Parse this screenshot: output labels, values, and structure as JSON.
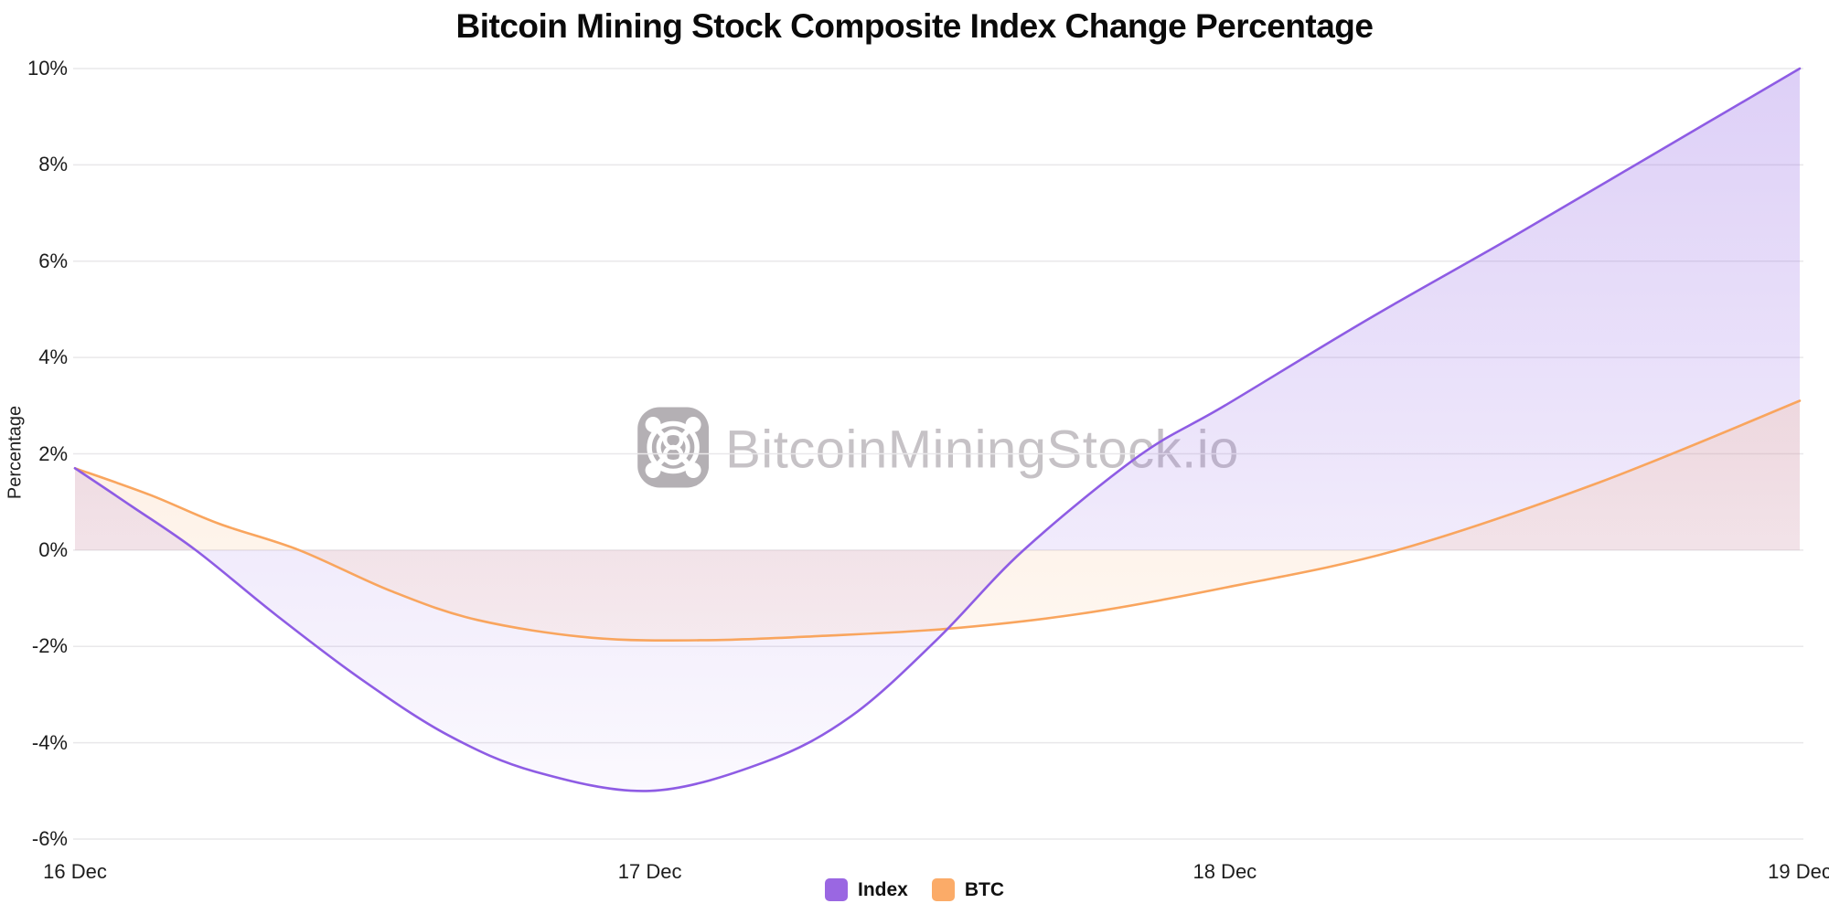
{
  "title": "Bitcoin Mining Stock Composite Index Change Percentage",
  "watermark": {
    "text": "BitcoinMiningStock.io",
    "logo": "asic-miner-fan-logo",
    "text_color": "#c6c2c6",
    "logo_color": "#b4b0b4"
  },
  "axes": {
    "y_label": "Percentage",
    "y_ticks": [
      "10%",
      "8%",
      "6%",
      "4%",
      "2%",
      "0%",
      "-2%",
      "-4%",
      "-6%"
    ],
    "y_tick_values": [
      10,
      8,
      6,
      4,
      2,
      0,
      -2,
      -4,
      -6
    ],
    "x_ticks": [
      "16 Dec",
      "17 Dec",
      "18 Dec",
      "19 Dec"
    ],
    "grid_color": "#e9e8ea"
  },
  "legend": {
    "position": "bottom",
    "items": [
      {
        "label": "Index",
        "color": "#9a67e2"
      },
      {
        "label": "BTC",
        "color": "#fbab68"
      }
    ]
  },
  "chart_data": {
    "type": "area",
    "title": "Bitcoin Mining Stock Composite Index Change Percentage",
    "xlabel": "",
    "ylabel": "Percentage",
    "ylim": [
      -6,
      10
    ],
    "y_tick_step": 2,
    "grid": "horizontal",
    "baseline": 0,
    "legend_position": "bottom",
    "x_categories": [
      "16 Dec",
      "17 Dec",
      "18 Dec",
      "19 Dec"
    ],
    "x_category_days": [
      0,
      1,
      2,
      3
    ],
    "x_unit": "days_after_16_Dec",
    "y_unit": "percent",
    "series": [
      {
        "name": "Index",
        "line_color": "#8e5ce4",
        "fill_from": "rgba(144,98,228,0.30)",
        "fill_to": "rgba(144,98,228,0.02)",
        "points": [
          [
            0,
            1.7
          ],
          [
            0.1,
            0.9
          ],
          [
            0.21,
            0
          ],
          [
            0.35,
            -1.35
          ],
          [
            0.5,
            -2.7
          ],
          [
            0.65,
            -3.85
          ],
          [
            0.8,
            -4.6
          ],
          [
            1.0,
            -5.0
          ],
          [
            1.2,
            -4.4
          ],
          [
            1.35,
            -3.45
          ],
          [
            1.5,
            -1.85
          ],
          [
            1.65,
            0
          ],
          [
            1.85,
            1.95
          ],
          [
            2.0,
            3.0
          ],
          [
            2.25,
            4.8
          ],
          [
            2.5,
            6.5
          ],
          [
            2.75,
            8.25
          ],
          [
            3.0,
            10.0
          ]
        ]
      },
      {
        "name": "BTC",
        "line_color": "#f9a55e",
        "fill_from": "rgba(250,166,98,0.30)",
        "fill_to": "rgba(250,166,98,0.02)",
        "points": [
          [
            0,
            1.7
          ],
          [
            0.13,
            1.15
          ],
          [
            0.25,
            0.55
          ],
          [
            0.39,
            0
          ],
          [
            0.55,
            -0.85
          ],
          [
            0.7,
            -1.45
          ],
          [
            0.9,
            -1.82
          ],
          [
            1.1,
            -1.87
          ],
          [
            1.3,
            -1.78
          ],
          [
            1.52,
            -1.63
          ],
          [
            1.75,
            -1.32
          ],
          [
            2.0,
            -0.78
          ],
          [
            2.3,
            0
          ],
          [
            2.65,
            1.4
          ],
          [
            3.0,
            3.1
          ]
        ]
      }
    ]
  }
}
